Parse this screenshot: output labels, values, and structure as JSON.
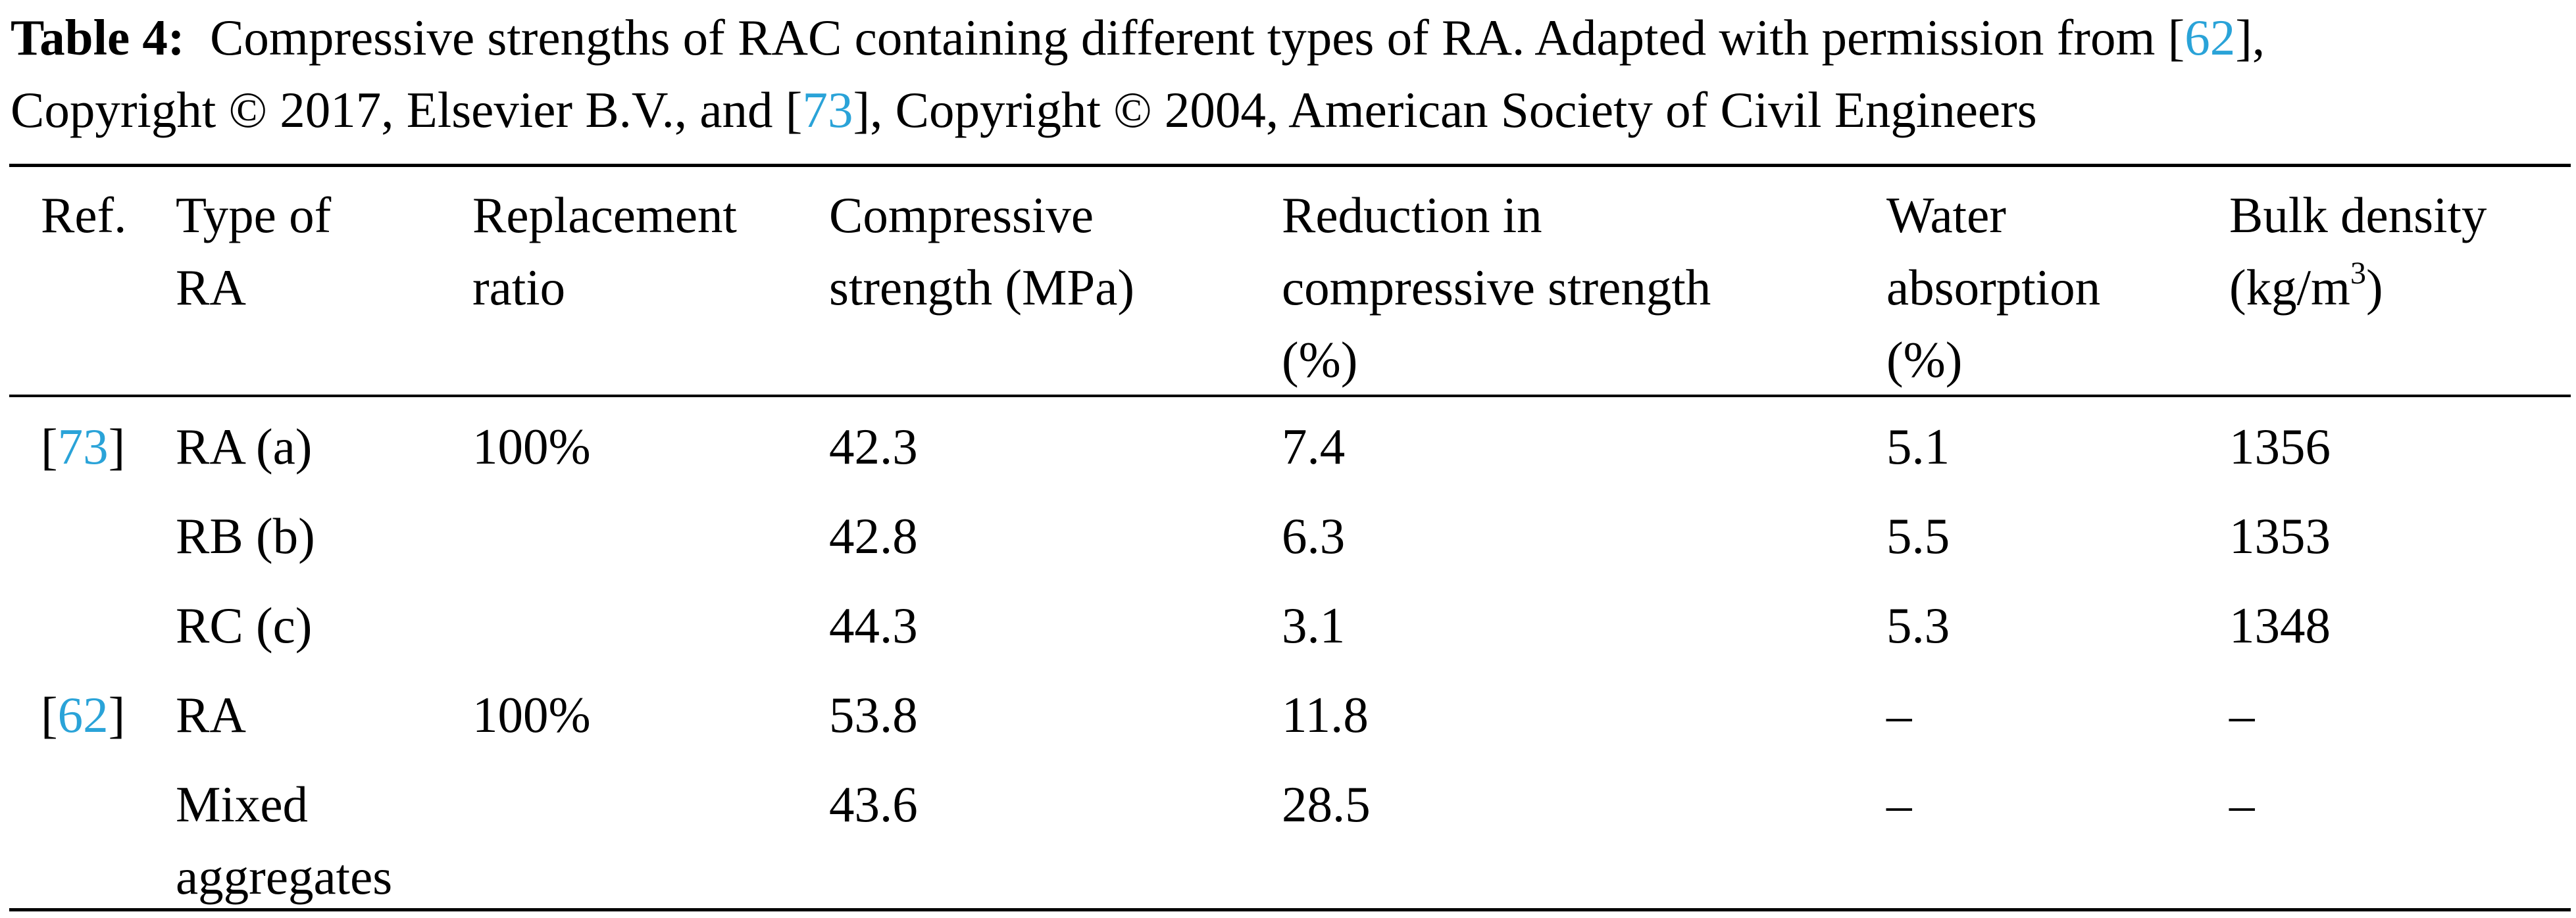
{
  "caption": {
    "label": "Table 4:",
    "text_line1_before": "Compressive strengths of RAC containing different types of RA. Adapted with permission from [",
    "ref_a": "62",
    "text_line1_after": "],",
    "text_line2_before": "Copyright © 2017, Elsevier B.V., and [",
    "ref_b": "73",
    "text_line2_after": "], Copyright © 2004, American Society of Civil Engineers"
  },
  "table": {
    "headers": {
      "ref": "Ref.",
      "type_line1": "Type of",
      "type_line2": "RA",
      "ratio_line1": "Replacement",
      "ratio_line2": "ratio",
      "cs_line1": "Compressive",
      "cs_line2": "strength (MPa)",
      "red_line1": "Reduction in",
      "red_line2": "compressive strength",
      "red_line3": "(%)",
      "wa_line1": "Water",
      "wa_line2": "absorption",
      "wa_line3": "(%)",
      "bd_line1": "Bulk density",
      "bd_line2_pre": "(kg/m",
      "bd_line2_sup": "3",
      "bd_line2_post": ")"
    },
    "rows": [
      {
        "ref_open": "[",
        "ref_num": "73",
        "ref_close": "]",
        "type": "RA (a)",
        "ratio": "100%",
        "compressive_strength": "42.3",
        "reduction": "7.4",
        "water_absorption": "5.1",
        "bulk_density": "1356"
      },
      {
        "type": "RB (b)",
        "compressive_strength": "42.8",
        "reduction": "6.3",
        "water_absorption": "5.5",
        "bulk_density": "1353"
      },
      {
        "type": "RC (c)",
        "compressive_strength": "44.3",
        "reduction": "3.1",
        "water_absorption": "5.3",
        "bulk_density": "1348"
      },
      {
        "ref_open": "[",
        "ref_num": "62",
        "ref_close": "]",
        "type": "RA",
        "ratio": "100%",
        "compressive_strength": "53.8",
        "reduction": "11.8",
        "water_absorption": "–",
        "bulk_density": "–"
      },
      {
        "type_line1": "Mixed",
        "type_line2": "aggregates",
        "compressive_strength": "43.6",
        "reduction": "28.5",
        "water_absorption": "–",
        "bulk_density": "–"
      }
    ]
  },
  "colors": {
    "link": "#2aa3d8",
    "text": "#000000",
    "rule": "#000000"
  }
}
